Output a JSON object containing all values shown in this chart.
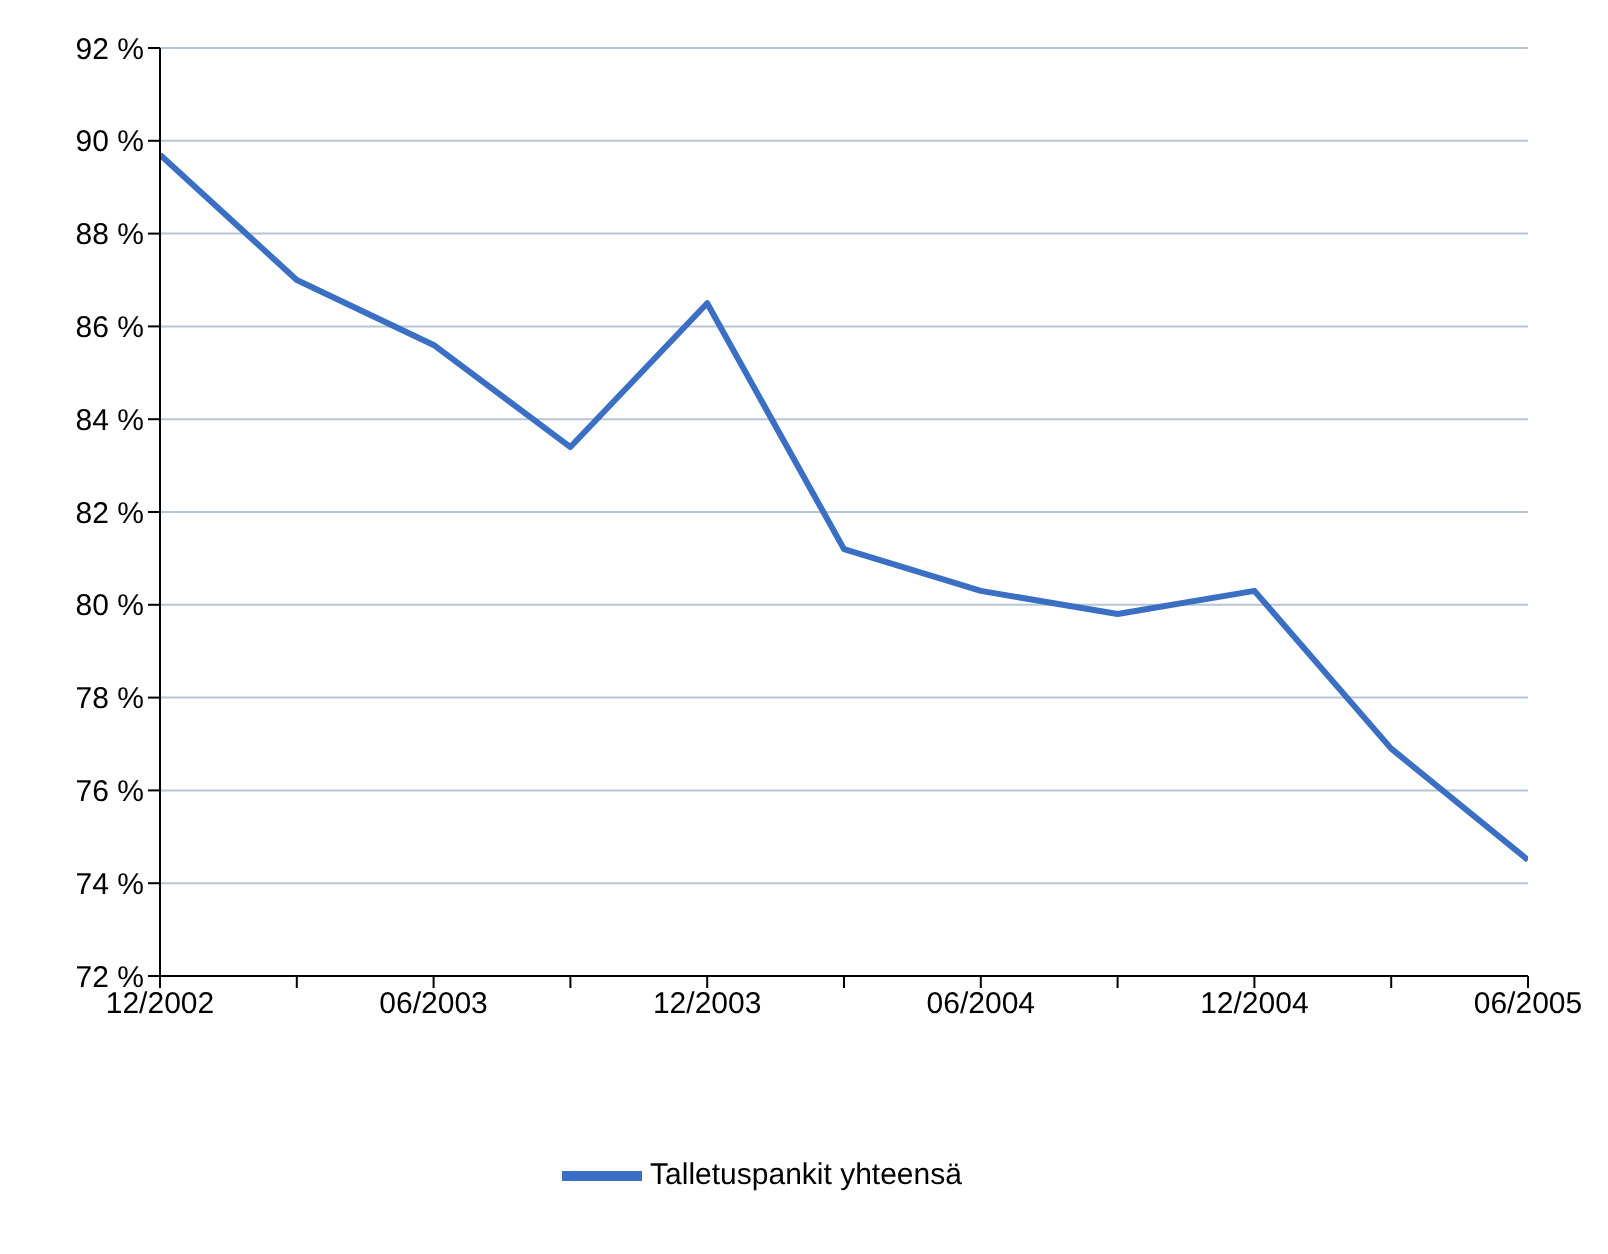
{
  "chart_data": {
    "type": "line",
    "categories": [
      "12/2002",
      null,
      "06/2003",
      null,
      "12/2003",
      null,
      "06/2004",
      null,
      "12/2004",
      null,
      "06/2005"
    ],
    "series": [
      {
        "name": "Talletuspankit yhteensä",
        "color": "#3a6fc4",
        "values": [
          89.7,
          87.0,
          85.6,
          83.4,
          86.5,
          81.2,
          80.3,
          79.8,
          80.3,
          76.9,
          74.5
        ]
      }
    ],
    "ylim": [
      72,
      92
    ],
    "yticks": [
      {
        "value": 72,
        "label": "72 %"
      },
      {
        "value": 74,
        "label": "74 %"
      },
      {
        "value": 76,
        "label": "76 %"
      },
      {
        "value": 78,
        "label": "78 %"
      },
      {
        "value": 80,
        "label": "80 %"
      },
      {
        "value": 82,
        "label": "82 %"
      },
      {
        "value": 84,
        "label": "84 %"
      },
      {
        "value": 86,
        "label": "86 %"
      },
      {
        "value": 88,
        "label": "88 %"
      },
      {
        "value": 90,
        "label": "90 %"
      },
      {
        "value": 92,
        "label": "92 %"
      }
    ],
    "grid": "y",
    "legend": "bottom",
    "marker": "none",
    "line_style": "solid"
  }
}
